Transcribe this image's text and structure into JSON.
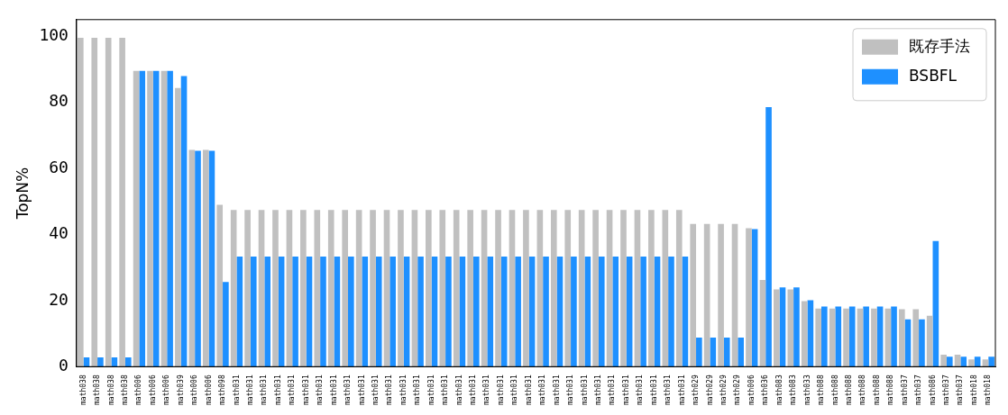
{
  "chart_data": {
    "type": "bar",
    "ylabel": "TopN%",
    "categories": [
      "math038",
      "math038",
      "math038",
      "math038",
      "math006",
      "math006",
      "math006",
      "math039",
      "math006",
      "math006",
      "math098",
      "math031",
      "math031",
      "math031",
      "math031",
      "math031",
      "math031",
      "math031",
      "math031",
      "math031",
      "math031",
      "math031",
      "math031",
      "math031",
      "math031",
      "math031",
      "math031",
      "math031",
      "math031",
      "math031",
      "math031",
      "math031",
      "math031",
      "math031",
      "math031",
      "math031",
      "math031",
      "math031",
      "math031",
      "math031",
      "math031",
      "math031",
      "math031",
      "math031",
      "math029",
      "math029",
      "math029",
      "math029",
      "math006",
      "math036",
      "math083",
      "math083",
      "math033",
      "math088",
      "math088",
      "math088",
      "math088",
      "math088",
      "math088",
      "math037",
      "math037",
      "math086",
      "math037",
      "math037",
      "math018",
      "math018"
    ],
    "series": [
      {
        "name": "既存手法",
        "color": "#c0c0c0",
        "values": [
          99.5,
          99.5,
          99.5,
          99.5,
          89.5,
          89.5,
          89.5,
          84.3,
          65.6,
          65.6,
          49.0,
          47.4,
          47.4,
          47.4,
          47.4,
          47.4,
          47.4,
          47.4,
          47.4,
          47.4,
          47.4,
          47.4,
          47.4,
          47.4,
          47.4,
          47.4,
          47.4,
          47.4,
          47.4,
          47.4,
          47.4,
          47.4,
          47.4,
          47.4,
          47.4,
          47.4,
          47.4,
          47.4,
          47.4,
          47.4,
          47.4,
          47.4,
          47.4,
          47.4,
          43.2,
          43.2,
          43.2,
          43.2,
          41.9,
          26.2,
          23.4,
          23.4,
          19.8,
          17.6,
          17.6,
          17.6,
          17.6,
          17.6,
          17.6,
          17.4,
          17.4,
          15.4,
          3.6,
          3.6,
          2.2,
          2.2
        ]
      },
      {
        "name": "BSBFL",
        "color": "#1e90ff",
        "values": [
          2.8,
          2.8,
          2.8,
          2.8,
          89.5,
          89.5,
          89.5,
          87.9,
          65.3,
          65.3,
          25.6,
          33.3,
          33.3,
          33.3,
          33.3,
          33.3,
          33.3,
          33.3,
          33.3,
          33.3,
          33.3,
          33.3,
          33.3,
          33.3,
          33.3,
          33.3,
          33.3,
          33.3,
          33.3,
          33.3,
          33.3,
          33.3,
          33.3,
          33.3,
          33.3,
          33.3,
          33.3,
          33.3,
          33.3,
          33.3,
          33.3,
          33.3,
          33.3,
          33.3,
          8.8,
          8.8,
          8.8,
          8.8,
          41.6,
          78.5,
          24.0,
          24.0,
          20.1,
          18.2,
          18.2,
          18.2,
          18.2,
          18.2,
          18.2,
          14.3,
          14.3,
          38.0,
          3.0,
          3.0,
          3.0,
          3.0
        ]
      }
    ],
    "ylim": [
      0,
      105
    ],
    "yticks": [
      0,
      20,
      40,
      60,
      80,
      100
    ],
    "grid": false,
    "legend": "top right"
  }
}
